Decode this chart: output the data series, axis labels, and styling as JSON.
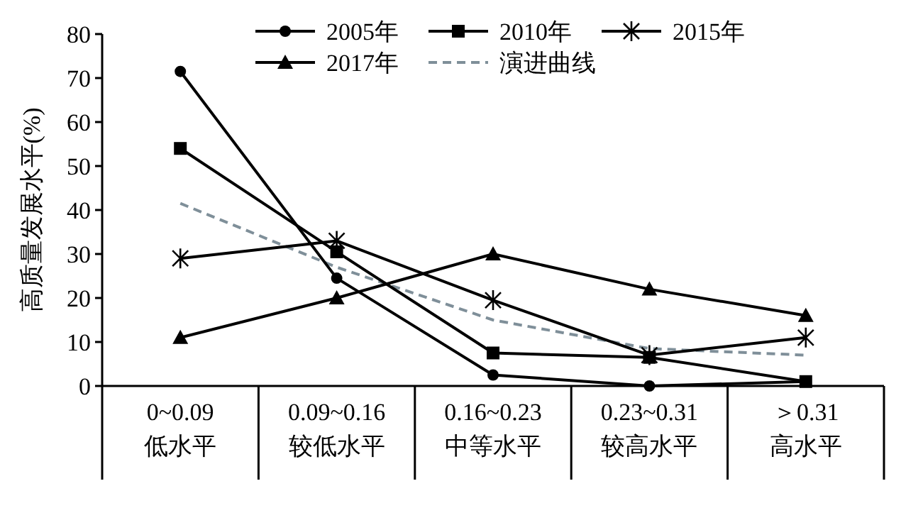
{
  "chart_data": {
    "type": "line",
    "ylabel": "高质量发展水平(%)",
    "categories": [
      "0~0.09\n低水平",
      "0.09~0.16\n较低水平",
      "0.16~0.23\n中等水平",
      "0.23~0.31\n较高水平",
      "＞0.31\n高水平"
    ],
    "ylim": [
      0,
      80
    ],
    "yticks": [
      0,
      10,
      20,
      30,
      40,
      50,
      60,
      70,
      80
    ],
    "grid": false,
    "legend": "top",
    "series": [
      {
        "name": "2005年",
        "color": "#000000",
        "marker": "circle",
        "values": [
          71.5,
          24.5,
          2.5,
          0,
          1
        ]
      },
      {
        "name": "2010年",
        "color": "#000000",
        "marker": "square",
        "values": [
          54,
          30.5,
          7.5,
          6.5,
          1
        ]
      },
      {
        "name": "2015年",
        "color": "#000000",
        "marker": "cross",
        "values": [
          29,
          33,
          19.5,
          7,
          11
        ]
      },
      {
        "name": "2017年",
        "color": "#000000",
        "marker": "triangle",
        "values": [
          11,
          20,
          30,
          22,
          16
        ]
      },
      {
        "name": "演进曲线",
        "color": "#7f8f99",
        "marker": "none",
        "line_style": "dashed",
        "values": [
          41.5,
          27,
          15,
          8.5,
          7
        ]
      }
    ]
  }
}
